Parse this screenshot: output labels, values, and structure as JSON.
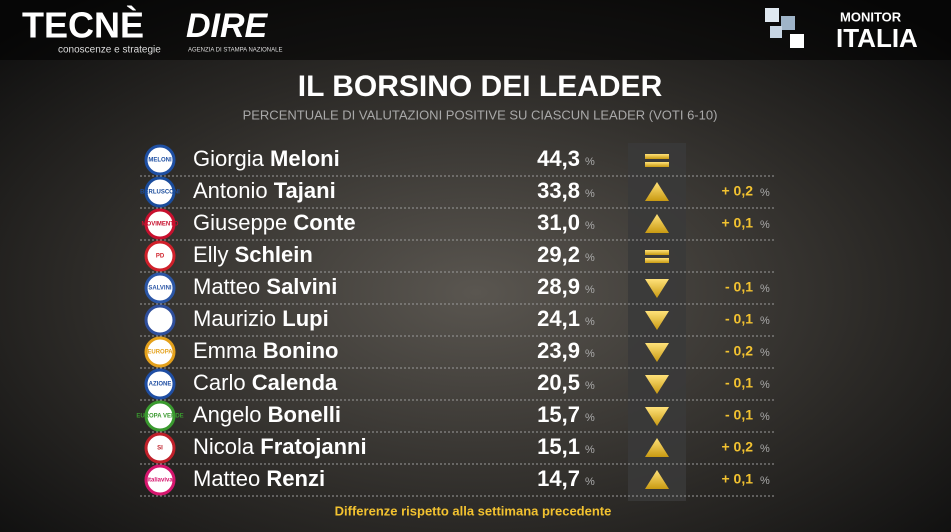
{
  "header": {
    "brand1": "TECNÈ",
    "brand1_tagline": "conoscenze e strategie",
    "brand2": "DIRE",
    "brand2_tagline": "AGENZIA DI STAMPA NAZIONALE",
    "brand3_top": "MONITOR",
    "brand3_bottom": "ITALIA",
    "title": "IL BORSINO DEI LEADER",
    "subtitle": "PERCENTUALE DI VALUTAZIONI POSITIVE SU CIASCUN LEADER (VOTI 6-10)"
  },
  "table": {
    "unit": "%",
    "rows": [
      {
        "logo": "MELONI",
        "logo_color": "#1e4fa3",
        "first": "Giorgia",
        "last": "Meloni",
        "value": "44,3",
        "trend": "same"
      },
      {
        "logo": "BERLUSCONI",
        "logo_color": "#1a4c9c",
        "first": "Antonio",
        "last": "Tajani",
        "value": "33,8",
        "trend": "up",
        "change": "+ 0,2"
      },
      {
        "logo": "MOVIMENTO",
        "logo_color": "#c8102e",
        "first": "Giuseppe",
        "last": "Conte",
        "value": "31,0",
        "trend": "up",
        "change": "+ 0,1"
      },
      {
        "logo": "PD",
        "logo_color": "#d0202a",
        "first": "Elly",
        "last": "Schlein",
        "value": "29,2",
        "trend": "same"
      },
      {
        "logo": "SALVINI",
        "logo_color": "#2b56a6",
        "first": "Matteo",
        "last": "Salvini",
        "value": "28,9",
        "trend": "down",
        "change": "- 0,1"
      },
      {
        "logo_color": "#2f4f9c",
        "first": "Maurizio",
        "last": "Lupi",
        "value": "24,1",
        "trend": "down",
        "change": "- 0,1"
      },
      {
        "logo": "EUROPA",
        "logo_color": "#e4a11b",
        "first": "Emma",
        "last": "Bonino",
        "value": "23,9",
        "trend": "down",
        "change": "- 0,2"
      },
      {
        "logo": "AZIONE",
        "logo_color": "#1f4ea3",
        "first": "Carlo",
        "last": "Calenda",
        "value": "20,5",
        "trend": "down",
        "change": "- 0,1"
      },
      {
        "logo": "EUROPA VERDE",
        "logo_color": "#3a9a2f",
        "first": "Angelo",
        "last": "Bonelli",
        "value": "15,7",
        "trend": "down",
        "change": "- 0,1"
      },
      {
        "logo": "SI",
        "logo_color": "#c0202a",
        "first": "Nicola",
        "last": "Fratojanni",
        "value": "15,1",
        "trend": "up",
        "change": "+ 0,2"
      },
      {
        "logo": "italiaviva",
        "logo_color": "#d6166e",
        "first": "Matteo",
        "last": "Renzi",
        "value": "14,7",
        "trend": "up",
        "change": "+ 0,1"
      }
    ]
  },
  "footer": "Differenze rispetto alla settimana precedente"
}
